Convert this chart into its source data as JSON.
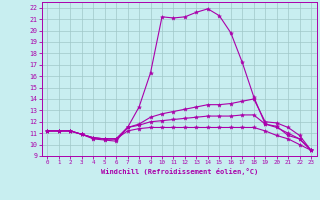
{
  "xlabel": "Windchill (Refroidissement éolien,°C)",
  "bg_color": "#c8eef0",
  "line_color": "#aa00aa",
  "grid_color": "#a0c8c8",
  "xlim": [
    -0.5,
    23.5
  ],
  "ylim": [
    9,
    22.5
  ],
  "xticks": [
    0,
    1,
    2,
    3,
    4,
    5,
    6,
    7,
    8,
    9,
    10,
    11,
    12,
    13,
    14,
    15,
    16,
    17,
    18,
    19,
    20,
    21,
    22,
    23
  ],
  "yticks": [
    9,
    10,
    11,
    12,
    13,
    14,
    15,
    16,
    17,
    18,
    19,
    20,
    21,
    22
  ],
  "series": [
    [
      11.2,
      11.2,
      11.2,
      10.9,
      10.5,
      10.4,
      10.3,
      11.5,
      13.3,
      16.3,
      21.2,
      21.1,
      21.2,
      21.6,
      21.9,
      21.3,
      19.8,
      17.2,
      14.2,
      11.8,
      11.6,
      10.8,
      10.5,
      9.5
    ],
    [
      11.2,
      11.2,
      11.2,
      10.9,
      10.6,
      10.5,
      10.5,
      11.5,
      11.8,
      12.4,
      12.7,
      12.9,
      13.1,
      13.3,
      13.5,
      13.5,
      13.6,
      13.8,
      14.0,
      12.0,
      11.9,
      11.5,
      10.8,
      9.5
    ],
    [
      11.2,
      11.2,
      11.2,
      10.9,
      10.6,
      10.5,
      10.5,
      11.5,
      11.7,
      12.0,
      12.1,
      12.2,
      12.3,
      12.4,
      12.5,
      12.5,
      12.5,
      12.6,
      12.6,
      11.8,
      11.5,
      11.0,
      10.5,
      9.5
    ],
    [
      11.2,
      11.2,
      11.2,
      10.9,
      10.6,
      10.5,
      10.5,
      11.2,
      11.4,
      11.5,
      11.5,
      11.5,
      11.5,
      11.5,
      11.5,
      11.5,
      11.5,
      11.5,
      11.5,
      11.2,
      10.8,
      10.5,
      10.0,
      9.5
    ]
  ]
}
